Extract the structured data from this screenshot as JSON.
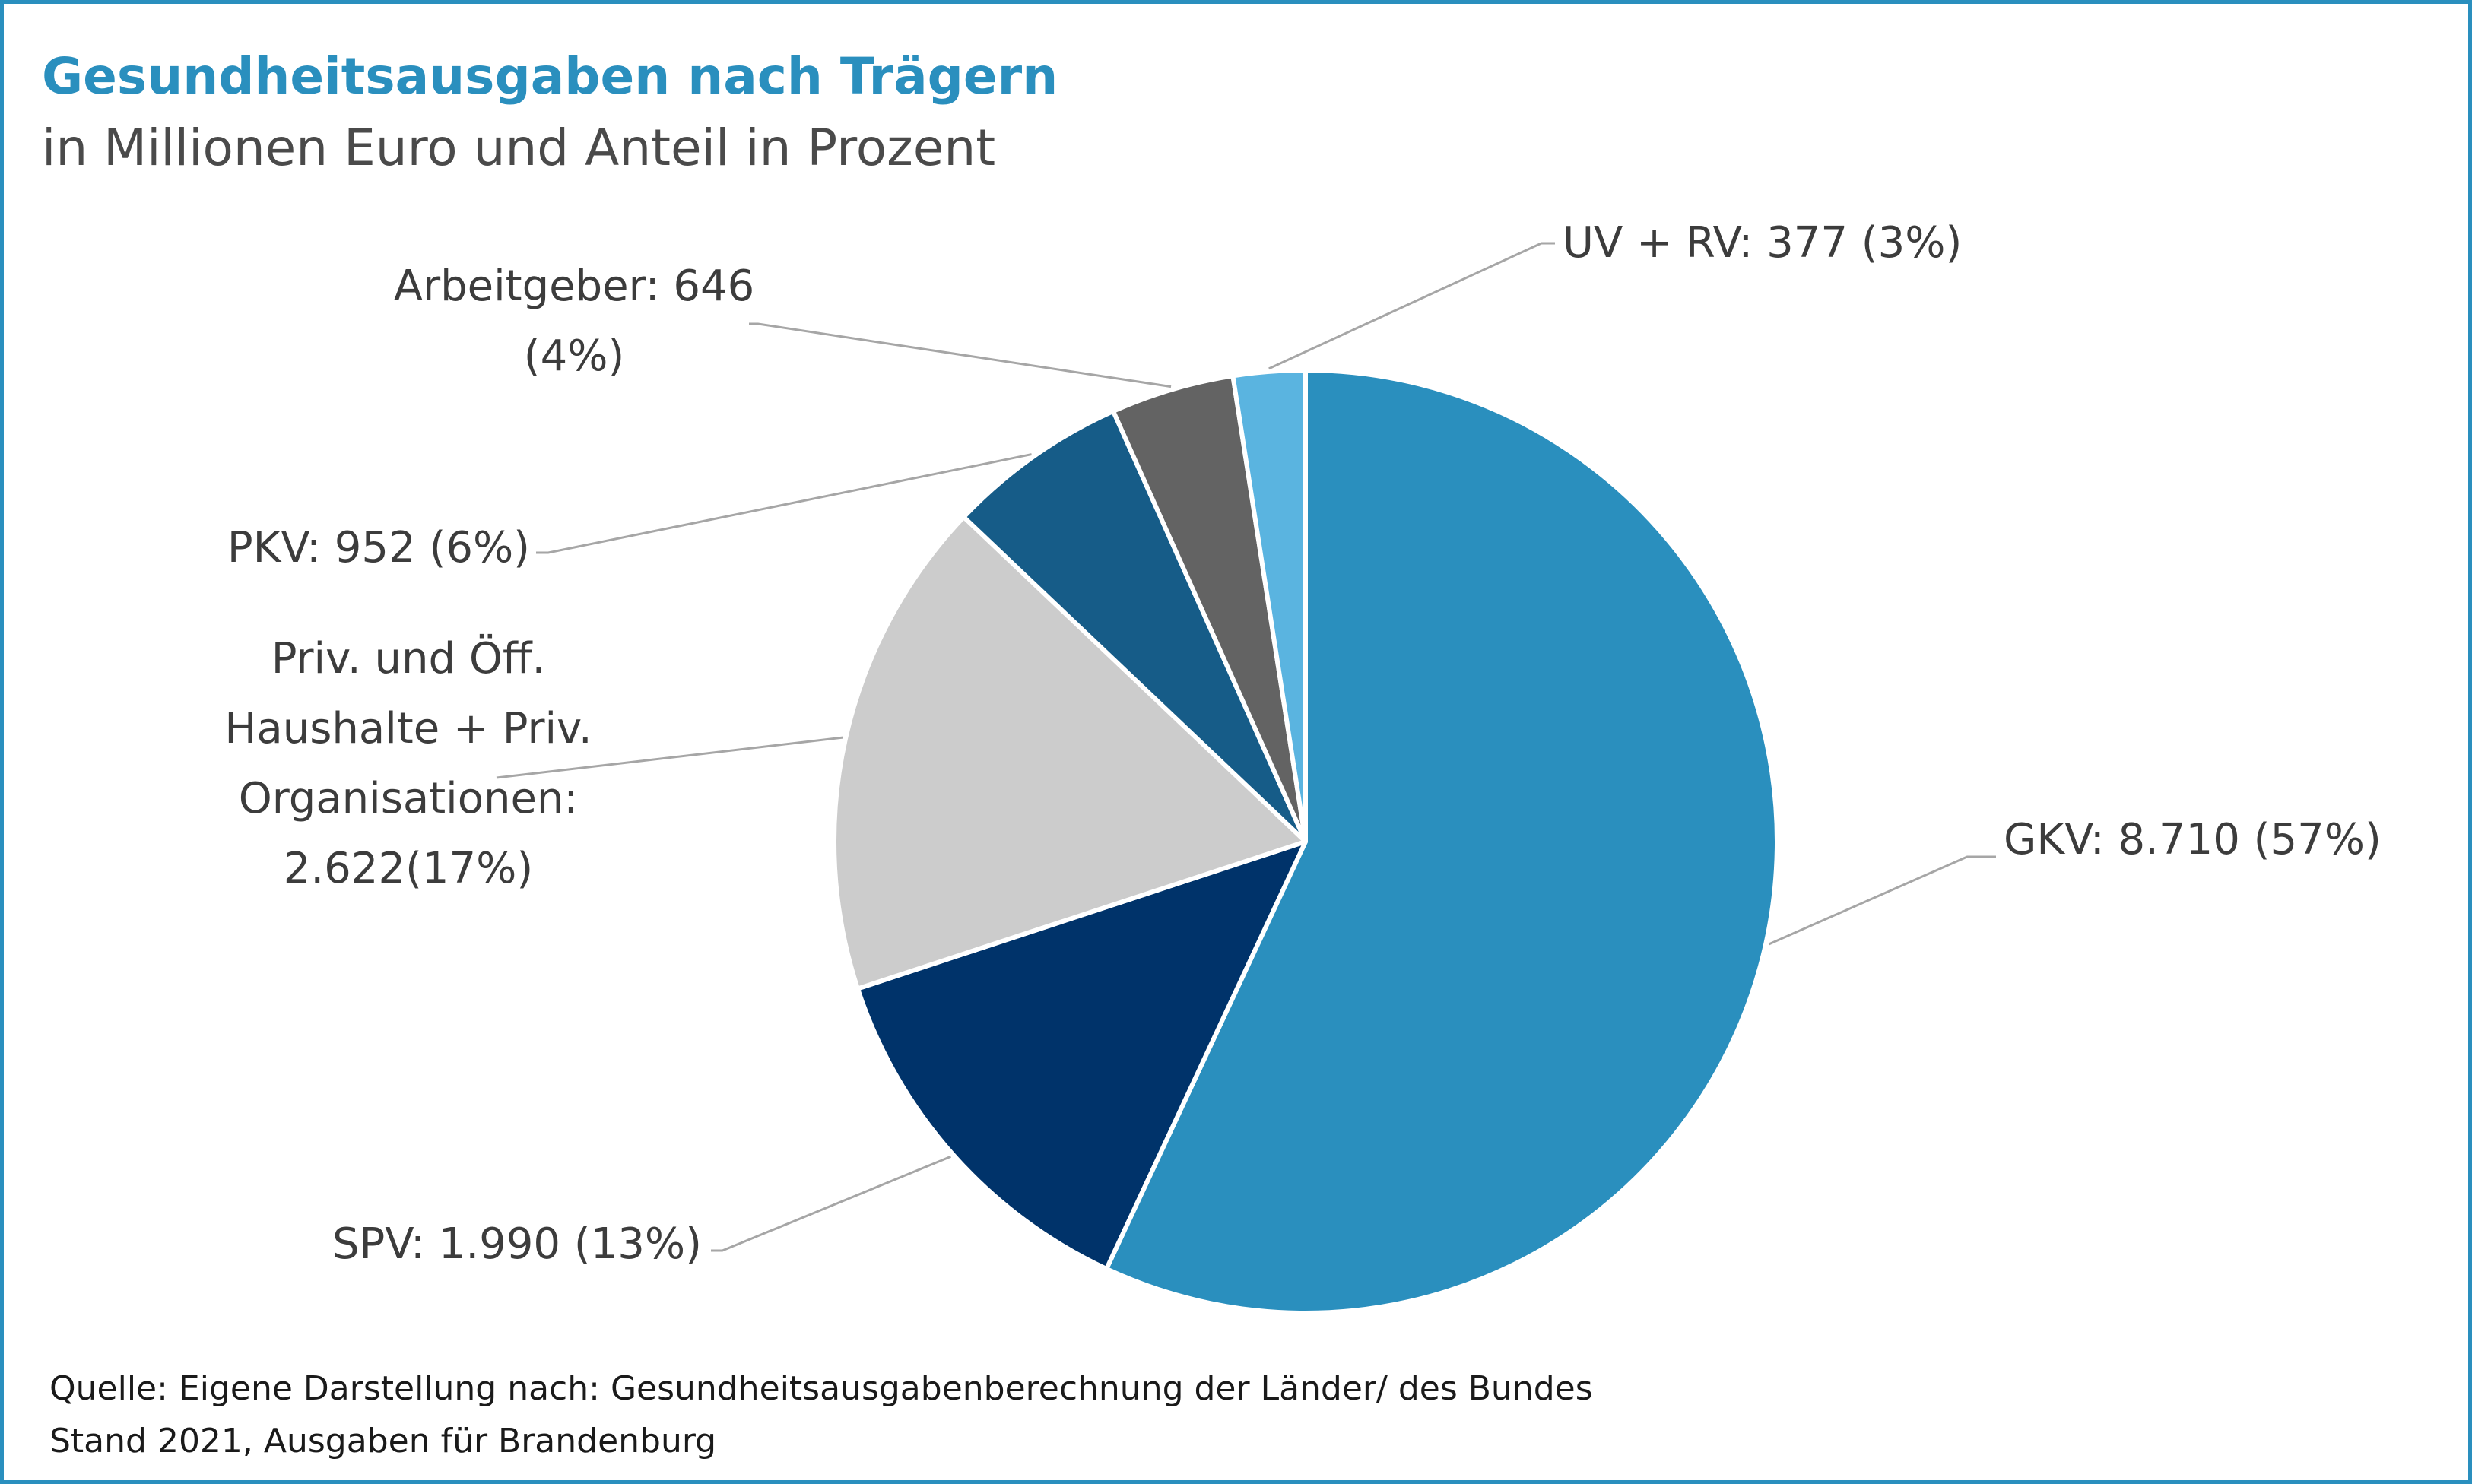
{
  "chart_data": {
    "type": "pie",
    "title": "Gesundheitsausgaben nach Trägern",
    "subtitle": "in Millionen Euro und Anteil in Prozent",
    "slices": [
      {
        "category": "GKV",
        "value": 8710,
        "percent": 57,
        "color": "#2a8fbe",
        "label_lines": [
          "GKV: 8.710 (57%)"
        ]
      },
      {
        "category": "SPV",
        "value": 1990,
        "percent": 13,
        "color": "#00336a",
        "label_lines": [
          "SPV: 1.990 (13%)"
        ]
      },
      {
        "category": "Priv. und Öff. Haushalte + Priv. Organisationen",
        "value": 2622,
        "percent": 17,
        "color": "#cccccc",
        "label_lines": [
          "Priv. und Öff.",
          "Haushalte + Priv.",
          "Organisationen:",
          "2.622(17%)"
        ]
      },
      {
        "category": "PKV",
        "value": 952,
        "percent": 6,
        "color": "#165c88",
        "label_lines": [
          "PKV: 952 (6%)"
        ]
      },
      {
        "category": "Arbeitgeber",
        "value": 646,
        "percent": 4,
        "color": "#636363",
        "label_lines": [
          "Arbeitgeber: 646",
          "(4%)"
        ]
      },
      {
        "category": "UV + RV",
        "value": 377,
        "percent": 3,
        "color": "#5ab4e0",
        "label_lines": [
          "UV + RV: 377 (3%)"
        ]
      }
    ],
    "legend": "none"
  },
  "source": {
    "line1": "Quelle: Eigene Darstellung nach: Gesundheitsausgabenberechnung der Länder/ des Bundes",
    "line2": "Stand 2021, Ausgaben für Brandenburg"
  },
  "colors": {
    "frame": "#2a8fbe",
    "title": "#2a8fbe"
  }
}
